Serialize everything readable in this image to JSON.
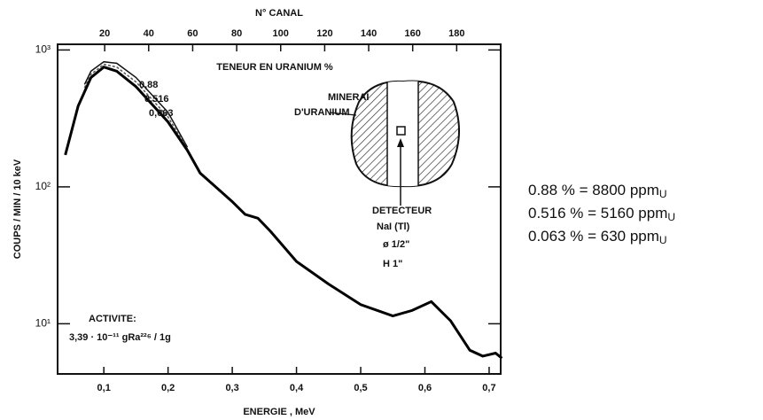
{
  "chart_data": {
    "type": "line",
    "title": "N° CANAL",
    "x_label": "ENERGIE , MeV",
    "y_label": "COUPS / MIN / 10 keV",
    "log_y": true,
    "xlim": [
      0.028,
      0.718
    ],
    "xticks": [
      {
        "value": 0.1,
        "label": "0,1"
      },
      {
        "value": 0.2,
        "label": "0,2"
      },
      {
        "value": 0.3,
        "label": "0,3"
      },
      {
        "value": 0.4,
        "label": "0,4"
      },
      {
        "value": 0.5,
        "label": "0,5"
      },
      {
        "value": 0.6,
        "label": "0,6"
      },
      {
        "value": 0.7,
        "label": "0,7"
      }
    ],
    "x2lim": [
      -1.4,
      200
    ],
    "x2ticks": [
      20,
      40,
      60,
      80,
      100,
      120,
      140,
      160,
      180
    ],
    "ylim": [
      4.3,
      1100
    ],
    "yticks": [
      {
        "value": 10,
        "label": "10¹"
      },
      {
        "value": 100,
        "label": "10²"
      },
      {
        "value": 1000,
        "label": "10³"
      }
    ],
    "legend_title": "TENEUR EN URANIUM %",
    "series": [
      {
        "name": "0,88",
        "color": "#111111",
        "x": [
          0.07,
          0.08,
          0.1,
          0.12,
          0.15,
          0.2,
          0.23
        ],
        "values": [
          560,
          700,
          820,
          800,
          630,
          350,
          195
        ]
      },
      {
        "name": "0,516",
        "color": "#555555",
        "x": [
          0.07,
          0.08,
          0.1,
          0.12,
          0.15,
          0.2,
          0.23
        ],
        "values": [
          530,
          665,
          785,
          750,
          585,
          324,
          190
        ]
      },
      {
        "name": "0,063",
        "color": "#000000",
        "x": [
          0.04,
          0.06,
          0.08,
          0.1,
          0.12,
          0.15,
          0.2,
          0.23,
          0.25,
          0.3,
          0.32,
          0.34,
          0.36,
          0.4,
          0.45,
          0.5,
          0.55,
          0.58,
          0.61,
          0.64,
          0.67,
          0.69,
          0.71,
          0.72
        ],
        "values": [
          171,
          390,
          630,
          750,
          700,
          540,
          298,
          185,
          126,
          78,
          63,
          59,
          47,
          28.5,
          19.5,
          13.8,
          11.4,
          12.5,
          14.5,
          10.5,
          6.4,
          5.8,
          6.1,
          5.6
        ]
      }
    ],
    "annotations": {
      "mineral": [
        "MINERAI",
        "D'URANIUM"
      ],
      "detector": [
        "DETECTEUR",
        "NaI (Tl)",
        "ø  1/2\"",
        "H   1\""
      ],
      "activity": [
        "ACTIVITE:",
        "3,39 · 10⁻¹¹ gRa²²⁶ / 1g"
      ]
    }
  },
  "notes": [
    {
      "text": "0.88 % = 8800 ppm",
      "sub": "U"
    },
    {
      "text": "0.516 % = 5160 ppm",
      "sub": "U"
    },
    {
      "text": "0.063 % = 630 ppm",
      "sub": "U"
    }
  ]
}
